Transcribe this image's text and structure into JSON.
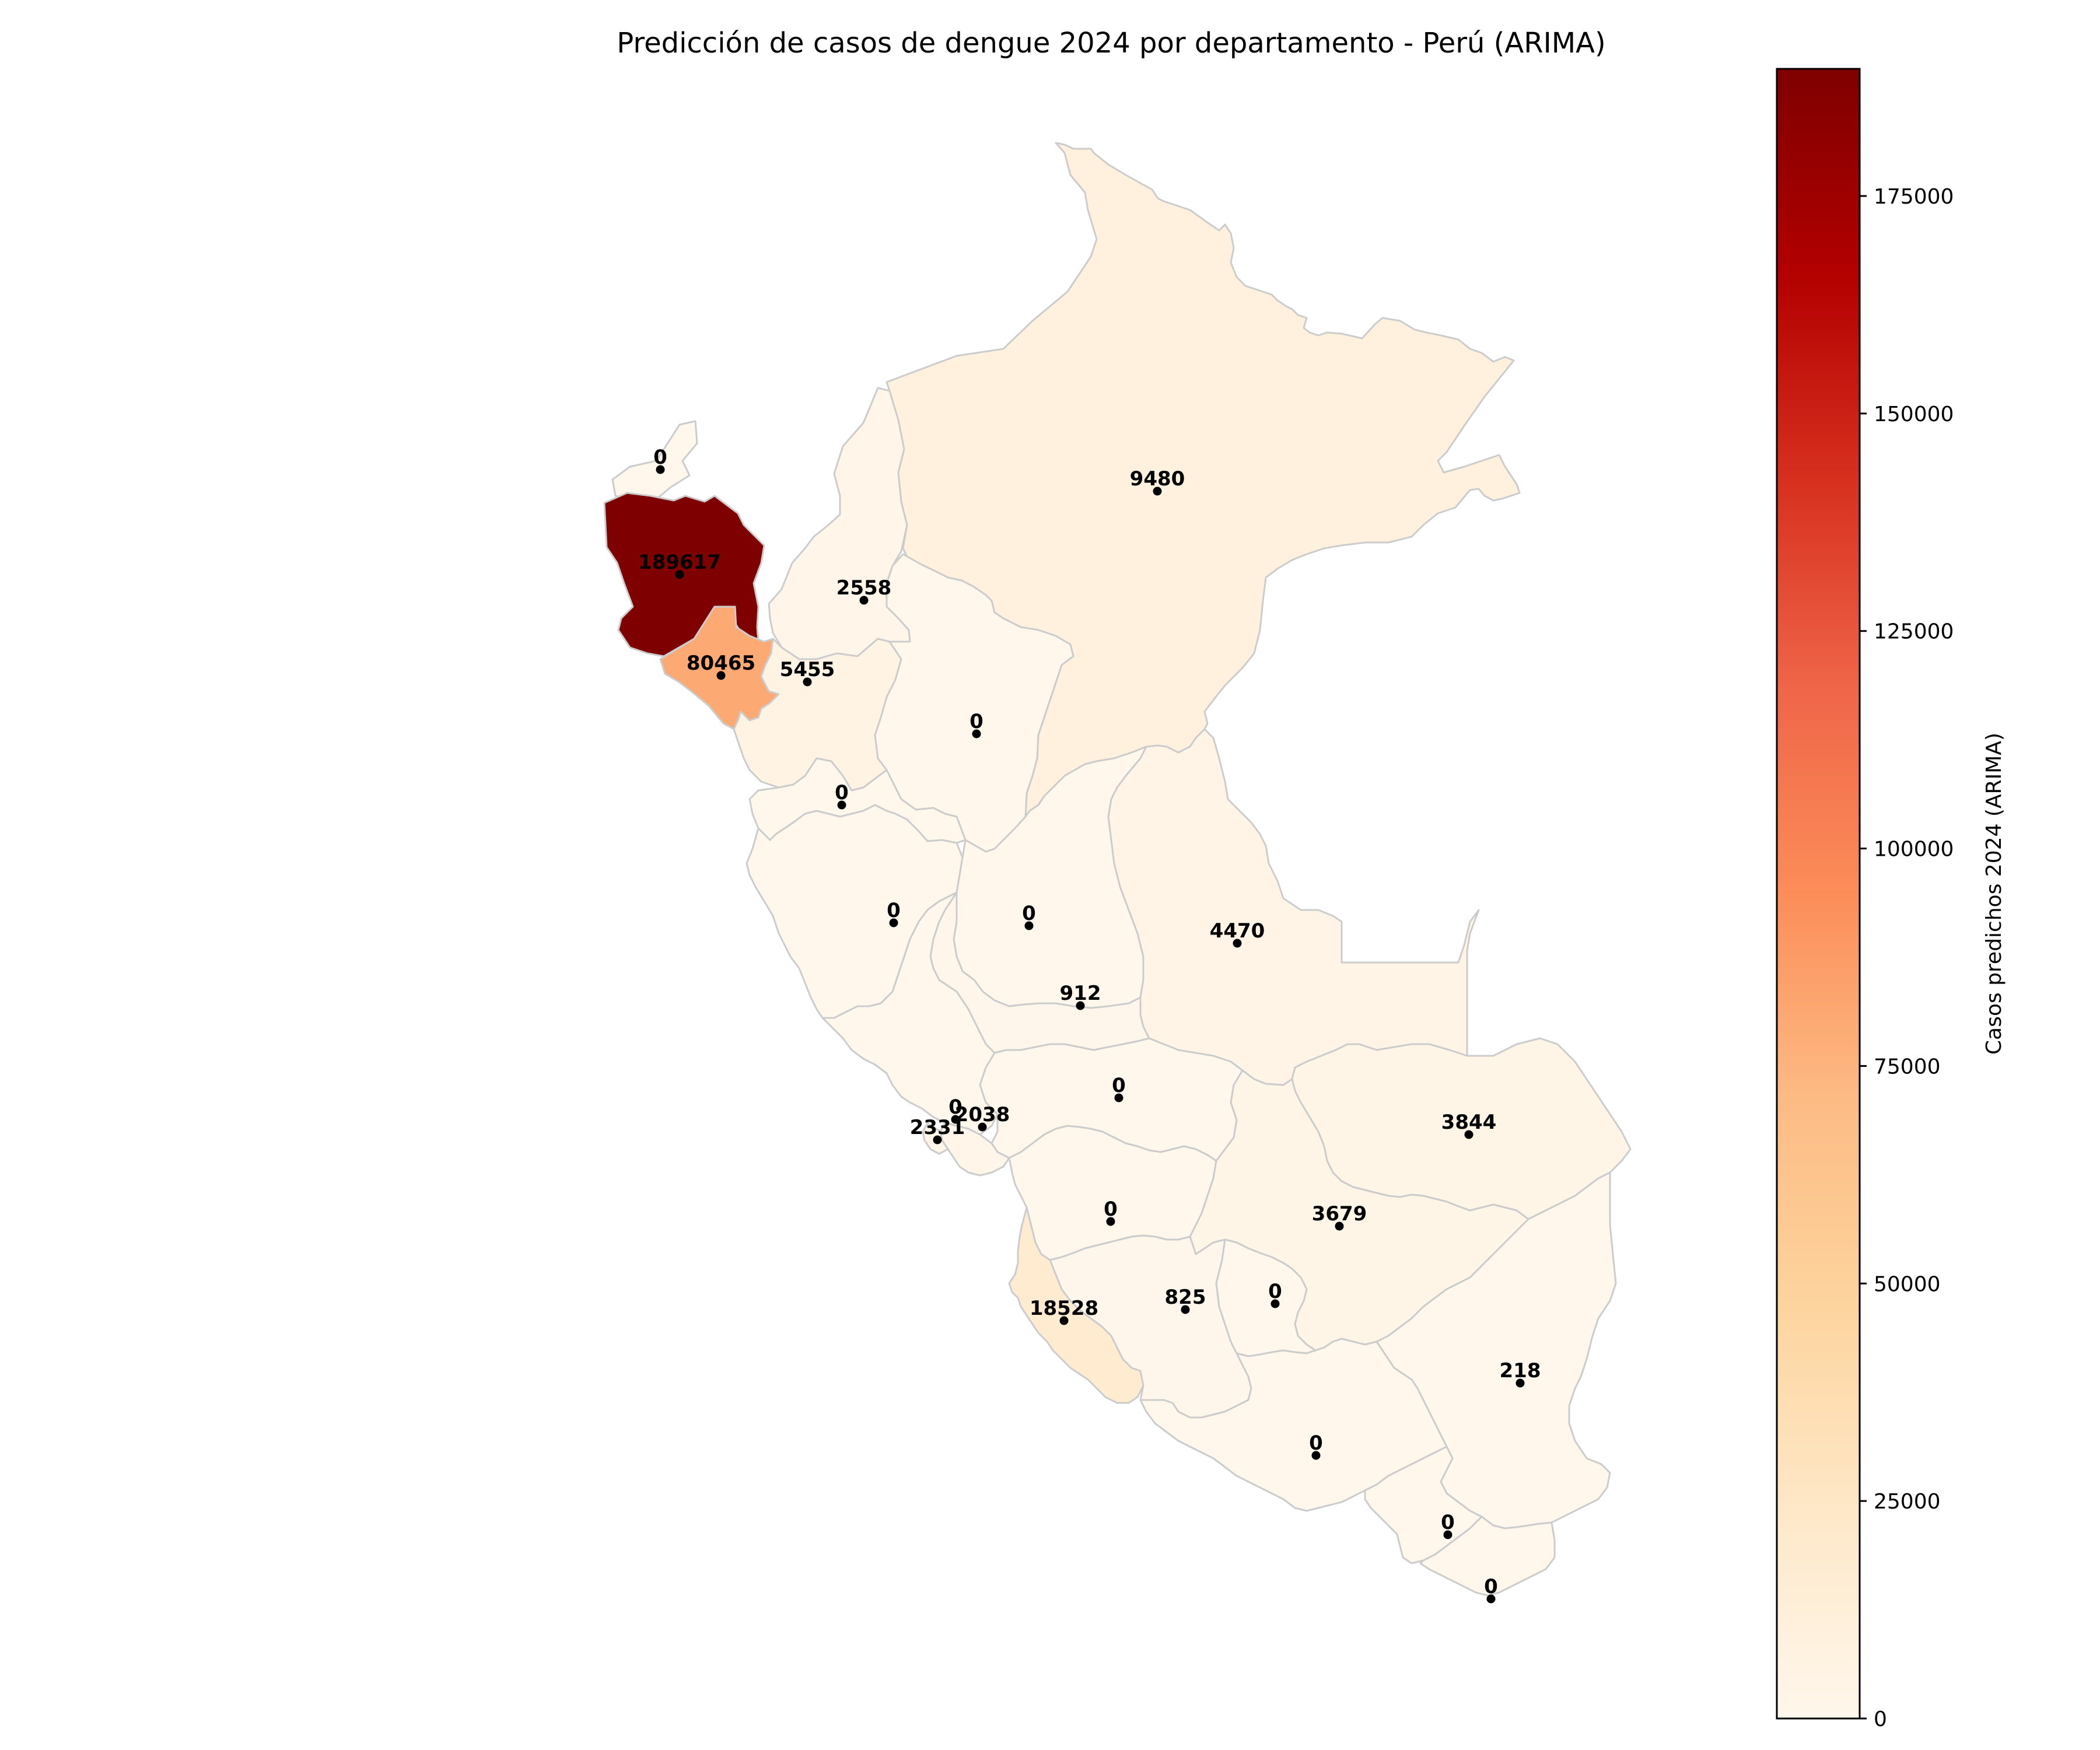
{
  "title": "Predicción de casos de dengue 2024 por departamento - Perú (ARIMA)",
  "colorbar": {
    "label": "Casos predichos 2024 (ARIMA)",
    "min": 0,
    "max": 189617,
    "ticks": [
      0,
      25000,
      50000,
      75000,
      100000,
      125000,
      150000,
      175000
    ],
    "tick_labels": [
      "0",
      "25000",
      "50000",
      "75000",
      "100000",
      "125000",
      "150000",
      "175000"
    ],
    "colormap": "OrRd"
  },
  "chart_data": {
    "type": "choropleth",
    "title": "Predicción de casos de dengue 2024 por departamento - Perú (ARIMA)",
    "colorbar_label": "Casos predichos 2024 (ARIMA)",
    "value_range": [
      0,
      189617
    ],
    "values": [
      {
        "label": "0",
        "value": 0
      },
      {
        "label": "189617",
        "value": 189617
      },
      {
        "label": "80465",
        "value": 80465
      },
      {
        "label": "2558",
        "value": 2558
      },
      {
        "label": "5455",
        "value": 5455
      },
      {
        "label": "9480",
        "value": 9480
      },
      {
        "label": "0",
        "value": 0
      },
      {
        "label": "0",
        "value": 0
      },
      {
        "label": "0",
        "value": 0
      },
      {
        "label": "0",
        "value": 0
      },
      {
        "label": "4470",
        "value": 4470
      },
      {
        "label": "912",
        "value": 912
      },
      {
        "label": "0",
        "value": 0
      },
      {
        "label": "0",
        "value": 0
      },
      {
        "label": "2038",
        "value": 2038
      },
      {
        "label": "2331",
        "value": 2331
      },
      {
        "label": "3844",
        "value": 3844
      },
      {
        "label": "0",
        "value": 0
      },
      {
        "label": "3679",
        "value": 3679
      },
      {
        "label": "18528",
        "value": 18528
      },
      {
        "label": "825",
        "value": 825
      },
      {
        "label": "0",
        "value": 0
      },
      {
        "label": "218",
        "value": 218
      },
      {
        "label": "0",
        "value": 0
      },
      {
        "label": "0",
        "value": 0
      },
      {
        "label": "0",
        "value": 0
      }
    ]
  }
}
